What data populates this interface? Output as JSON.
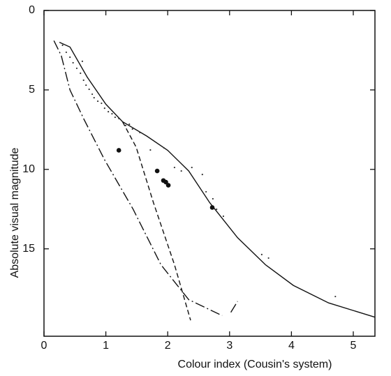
{
  "chart_data": {
    "type": "line",
    "xlabel": "Colour index (Cousin's system)",
    "ylabel": "Absolute visual magnitude",
    "xlim": [
      0,
      5.35
    ],
    "ylim": [
      0,
      20.5
    ],
    "y_inverted": true,
    "xticks": [
      0,
      1,
      2,
      3,
      4,
      5
    ],
    "yticks": [
      0,
      5,
      10,
      15
    ],
    "grid": false,
    "series": [
      {
        "style": "solid",
        "color": "#111111",
        "x": [
          0.25,
          0.42,
          0.7,
          1.0,
          1.27,
          1.66,
          2.0,
          2.34,
          2.68,
          3.13,
          3.58,
          4.03,
          4.6,
          5.35
        ],
        "values": [
          2.0,
          2.3,
          4.2,
          5.9,
          7.0,
          7.9,
          8.8,
          10.1,
          12.1,
          14.3,
          16.0,
          17.3,
          18.4,
          19.3
        ]
      },
      {
        "style": "dashdot",
        "color": "#111111",
        "x": [
          0.16,
          0.28,
          0.42,
          0.64,
          0.98,
          1.44,
          1.89,
          2.34,
          2.88
        ],
        "values": [
          1.9,
          2.85,
          5.0,
          6.8,
          9.4,
          12.5,
          16.0,
          18.2,
          19.2
        ]
      },
      {
        "style": "dashdot",
        "color": "#111111",
        "x": [
          3.02,
          3.13
        ],
        "values": [
          19.0,
          18.3
        ]
      },
      {
        "style": "dashed",
        "color": "#111111",
        "x": [
          1.27,
          1.49,
          1.77,
          2.11,
          2.37
        ],
        "values": [
          7.0,
          8.6,
          12.1,
          16.0,
          19.5
        ]
      },
      {
        "style": "points-large",
        "color": "#111111",
        "x": [
          1.21,
          1.83,
          1.93,
          1.97,
          2.01,
          2.72
        ],
        "values": [
          8.8,
          10.1,
          10.7,
          10.8,
          11.0,
          12.4
        ]
      },
      {
        "style": "points-small",
        "color": "#333333",
        "x": [
          0.3,
          0.36,
          0.42,
          0.47,
          0.53,
          0.59,
          0.62,
          0.64,
          0.68,
          0.73,
          0.78,
          0.81,
          0.87,
          0.93,
          0.98,
          1.04,
          1.1,
          1.15,
          1.21,
          1.32,
          1.38,
          1.43,
          1.55,
          1.72,
          1.94,
          2.11,
          2.22,
          2.39,
          2.56,
          2.62,
          2.73,
          2.79,
          2.9,
          3.52,
          3.63,
          4.71
        ],
        "values": [
          2.19,
          2.63,
          2.94,
          3.29,
          3.64,
          3.95,
          3.2,
          4.39,
          4.7,
          4.96,
          5.27,
          5.49,
          5.71,
          5.84,
          6.15,
          6.37,
          6.5,
          6.72,
          6.8,
          7.24,
          7.16,
          7.46,
          7.68,
          8.78,
          8.65,
          9.88,
          10.1,
          9.88,
          10.32,
          11.41,
          11.85,
          12.51,
          12.95,
          15.36,
          15.58,
          18.0
        ]
      }
    ]
  }
}
